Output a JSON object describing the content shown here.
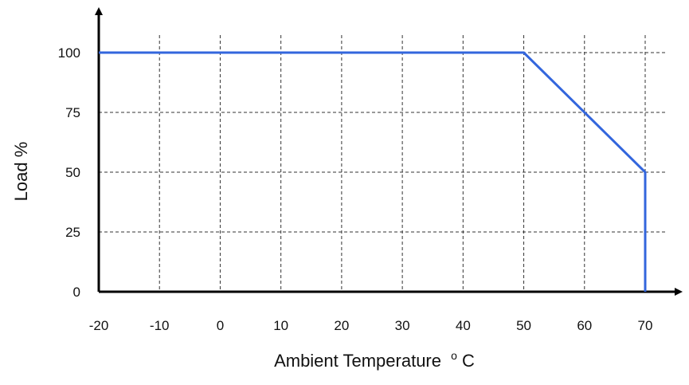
{
  "chart_data": {
    "type": "line",
    "title": "",
    "xlabel": "Ambient Temperature",
    "xlabel_sup": "o",
    "xlabel_unit": "C",
    "ylabel": "Load %",
    "x_ticks": [
      "-20",
      "-10",
      "0",
      "10",
      "20",
      "30",
      "40",
      "50",
      "60",
      "70"
    ],
    "y_ticks": [
      "0",
      "25",
      "50",
      "75",
      "100"
    ],
    "xlim": [
      -20,
      70
    ],
    "ylim": [
      0,
      100
    ],
    "grid": true,
    "series": [
      {
        "x": [
          -20,
          50,
          70,
          70
        ],
        "y": [
          100,
          100,
          50,
          0
        ],
        "color": "#3366dd"
      }
    ]
  }
}
